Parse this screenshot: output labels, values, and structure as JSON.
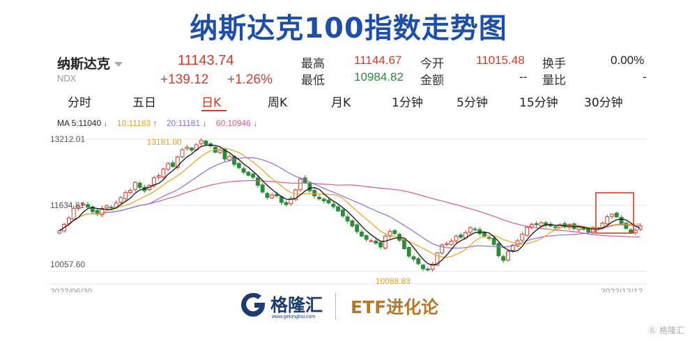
{
  "title": "纳斯达克100指数走势图",
  "quote": {
    "name": "纳斯达克",
    "code": "NDX",
    "price": "11143.74",
    "change": "+139.12",
    "change_pct": "+1.26%",
    "high_label": "最高",
    "high": "11144.67",
    "low_label": "最低",
    "low": "10984.82",
    "open_label": "今开",
    "open": "11015.48",
    "amount_label": "金额",
    "amount": "--",
    "turnover_label": "换手",
    "turnover": "0.00%",
    "ratio_label": "量比",
    "ratio": "-"
  },
  "tabs": [
    "分时",
    "五日",
    "日K",
    "周K",
    "月K",
    "1分钟",
    "5分钟",
    "15分钟",
    "30分钟"
  ],
  "active_tab": "日K",
  "ma": {
    "ma5": "MA 5:11040",
    "ma10": "10:11183",
    "ma20": "20:11181",
    "ma60": "60:10946"
  },
  "colors": {
    "up": "#d23a2c",
    "down": "#2e8b3a",
    "ma5": "#111111",
    "ma10": "#e8a21f",
    "ma20": "#8a6be0",
    "ma60": "#d35b8e",
    "title": "#1e4ea6"
  },
  "chart_data": {
    "type": "candlestick",
    "y_tick_labels": [
      "13212.01",
      "11634.81",
      "10057.60"
    ],
    "ylim": [
      10057.6,
      13212.01
    ],
    "x_start": "2022/06/30",
    "x_end": "2022/12/12",
    "annotations": {
      "max": "13181.00",
      "min": "10088.83"
    },
    "close_series": [
      11030,
      11180,
      11330,
      11560,
      11620,
      11670,
      11590,
      11480,
      11420,
      11560,
      11620,
      11580,
      11690,
      11820,
      11940,
      11990,
      12180,
      12060,
      11980,
      12110,
      12290,
      12340,
      12500,
      12630,
      12560,
      12790,
      12960,
      13020,
      12950,
      13080,
      13181,
      13090,
      13050,
      12900,
      12950,
      12740,
      12800,
      12610,
      12530,
      12420,
      12350,
      12300,
      12110,
      11950,
      11820,
      11880,
      11860,
      11700,
      11650,
      11790,
      12000,
      12260,
      12180,
      11980,
      11860,
      11790,
      11740,
      11690,
      11600,
      11500,
      11380,
      11260,
      11140,
      11010,
      10900,
      10820,
      10790,
      10730,
      10640,
      10900,
      11010,
      10960,
      10800,
      10600,
      10420,
      10350,
      10240,
      10120,
      10088.83,
      10230,
      10500,
      10690,
      10720,
      10780,
      10900,
      10870,
      10980,
      11100,
      11060,
      10960,
      10890,
      10850,
      10700,
      10430,
      10320,
      10530,
      10680,
      10790,
      10950,
      11110,
      11180,
      11170,
      11220,
      11160,
      11140,
      11100,
      11170,
      11120,
      11180,
      11080,
      11110,
      11060,
      11000,
      11090,
      11090,
      11210,
      11360,
      11420,
      11360,
      11200,
      11080,
      10990,
      11040,
      11143.74
    ]
  },
  "footer": {
    "logo_text": "格隆汇",
    "logo_url": "www.gelonghui.com",
    "slogan": "ETF进化论",
    "watermark": "格隆汇"
  }
}
